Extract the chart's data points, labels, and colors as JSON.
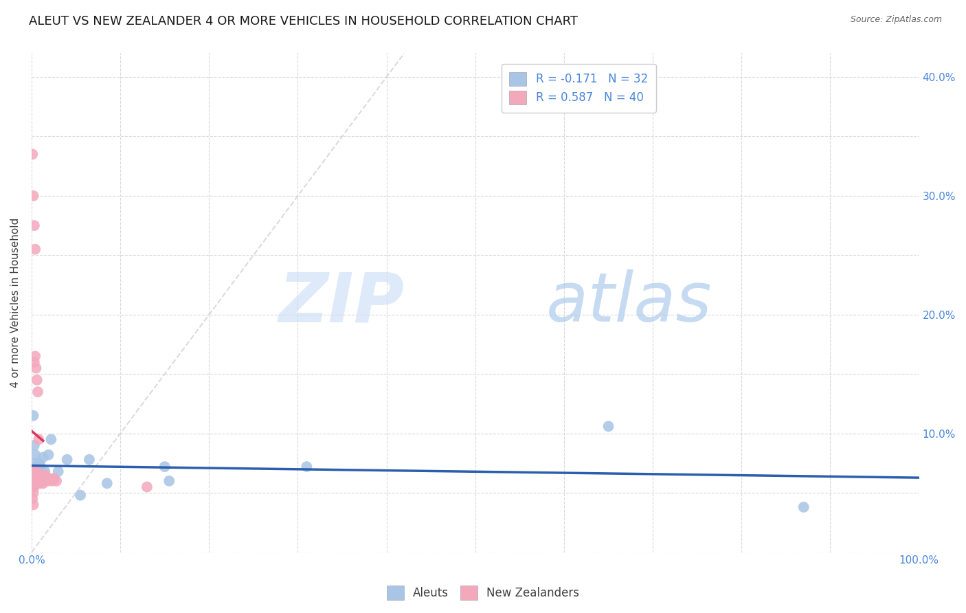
{
  "title": "ALEUT VS NEW ZEALANDER 4 OR MORE VEHICLES IN HOUSEHOLD CORRELATION CHART",
  "source": "Source: ZipAtlas.com",
  "ylabel": "4 or more Vehicles in Household",
  "watermark_zip": "ZIP",
  "watermark_atlas": "atlas",
  "legend_aleut": "R = -0.171   N = 32",
  "legend_nz": "R = 0.587   N = 40",
  "aleut_color": "#a8c4e6",
  "nz_color": "#f4a8bc",
  "aleut_line_color": "#2b5fad",
  "nz_line_color": "#d9365e",
  "trendline_dashed_color": "#cccccc",
  "xlim": [
    0.0,
    1.0
  ],
  "ylim": [
    0.0,
    0.42
  ],
  "xticks": [
    0.0,
    0.1,
    0.2,
    0.3,
    0.4,
    0.5,
    0.6,
    0.7,
    0.8,
    0.9,
    1.0
  ],
  "yticks": [
    0.0,
    0.05,
    0.1,
    0.15,
    0.2,
    0.25,
    0.3,
    0.35,
    0.4
  ],
  "xticklabels": [
    "0.0%",
    "",
    "",
    "",
    "",
    "",
    "",
    "",
    "",
    "",
    "100.0%"
  ],
  "right_yticklabels": [
    "",
    "",
    "10.0%",
    "",
    "20.0%",
    "",
    "30.0%",
    "",
    "40.0%"
  ],
  "aleut_x": [
    0.002,
    0.003,
    0.004,
    0.004,
    0.005,
    0.005,
    0.006,
    0.006,
    0.007,
    0.007,
    0.008,
    0.008,
    0.009,
    0.01,
    0.011,
    0.012,
    0.013,
    0.015,
    0.017,
    0.019,
    0.022,
    0.025,
    0.03,
    0.04,
    0.055,
    0.065,
    0.085,
    0.15,
    0.155,
    0.31,
    0.65,
    0.87
  ],
  "aleut_y": [
    0.115,
    0.09,
    0.082,
    0.075,
    0.072,
    0.065,
    0.065,
    0.072,
    0.068,
    0.073,
    0.067,
    0.065,
    0.075,
    0.072,
    0.06,
    0.063,
    0.08,
    0.068,
    0.063,
    0.082,
    0.095,
    0.062,
    0.068,
    0.078,
    0.048,
    0.078,
    0.058,
    0.072,
    0.06,
    0.072,
    0.106,
    0.038
  ],
  "nz_x": [
    0.001,
    0.001,
    0.001,
    0.001,
    0.001,
    0.002,
    0.002,
    0.002,
    0.002,
    0.002,
    0.002,
    0.003,
    0.003,
    0.003,
    0.003,
    0.004,
    0.004,
    0.004,
    0.005,
    0.005,
    0.005,
    0.006,
    0.006,
    0.007,
    0.007,
    0.008,
    0.008,
    0.009,
    0.01,
    0.01,
    0.011,
    0.012,
    0.013,
    0.015,
    0.018,
    0.02,
    0.023,
    0.025,
    0.028,
    0.13
  ],
  "nz_y": [
    0.335,
    0.065,
    0.06,
    0.055,
    0.045,
    0.3,
    0.065,
    0.06,
    0.055,
    0.05,
    0.04,
    0.275,
    0.16,
    0.065,
    0.055,
    0.255,
    0.165,
    0.068,
    0.155,
    0.068,
    0.06,
    0.145,
    0.065,
    0.135,
    0.062,
    0.095,
    0.062,
    0.065,
    0.065,
    0.058,
    0.065,
    0.06,
    0.058,
    0.065,
    0.06,
    0.062,
    0.06,
    0.062,
    0.06,
    0.055
  ],
  "grid_color": "#d0d0d0",
  "background_color": "#ffffff",
  "title_fontsize": 13,
  "label_fontsize": 11,
  "tick_fontsize": 11,
  "tick_color": "#4a86d8",
  "title_color": "#1a1a1a",
  "source_color": "#666666"
}
